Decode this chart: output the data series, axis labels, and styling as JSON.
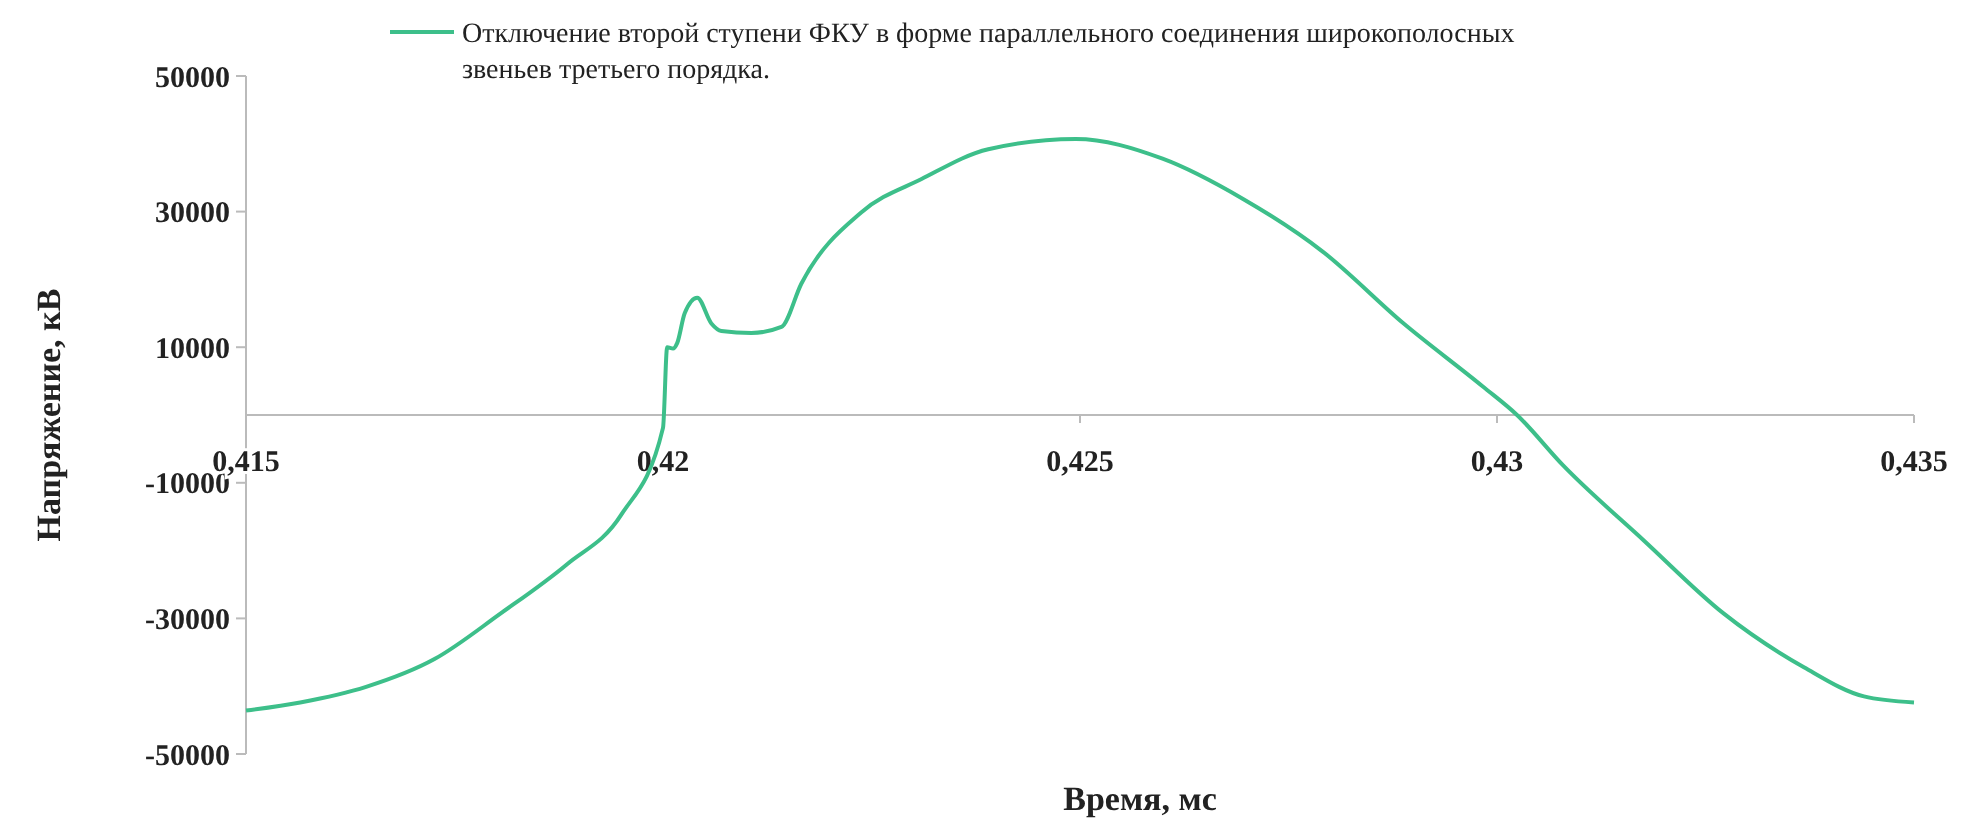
{
  "chart_data": {
    "type": "line",
    "xlabel": "Время, мс",
    "ylabel": "Напряжение, кВ",
    "xlim": [
      0.415,
      0.435
    ],
    "xticks": [
      {
        "value": 0.415,
        "label": "0,415"
      },
      {
        "value": 0.42,
        "label": "0,42"
      },
      {
        "value": 0.425,
        "label": "0,425"
      },
      {
        "value": 0.43,
        "label": "0,43"
      },
      {
        "value": 0.435,
        "label": "0,435"
      }
    ],
    "ylim": [
      -50000,
      50000
    ],
    "yticks": [
      -50000,
      -30000,
      -10000,
      10000,
      30000,
      50000
    ],
    "grid": false,
    "legend": "top",
    "marker": "none",
    "line_style": "solid",
    "series": [
      {
        "name": "Отключение второй ступени ФКУ в форме параллельного соединения широкополосных звеньев третьего порядка.",
        "color": "#3dbf8a",
        "x": [
          0.415,
          0.41565,
          0.41644,
          0.41726,
          0.41805,
          0.41885,
          0.4195,
          0.42,
          0.42005,
          0.42012,
          0.42017,
          0.42026,
          0.42041,
          0.42058,
          0.4207,
          0.42106,
          0.42142,
          0.42166,
          0.42238,
          0.4231,
          0.4239,
          0.42495,
          0.42599,
          0.42695,
          0.42791,
          0.42887,
          0.42983,
          0.43024,
          0.43079,
          0.43176,
          0.43272,
          0.43368,
          0.4344,
          0.435
        ],
        "values": [
          -43600,
          -42400,
          -40100,
          -36000,
          -29300,
          -22000,
          -14700,
          -1900,
          10000,
          9800,
          10600,
          15000,
          17300,
          13500,
          12400,
          12100,
          13000,
          19400,
          29900,
          34800,
          39200,
          40700,
          37800,
          31900,
          24100,
          13600,
          4200,
          0,
          -7400,
          -18500,
          -29300,
          -37200,
          -41500,
          -42400
        ]
      }
    ]
  }
}
